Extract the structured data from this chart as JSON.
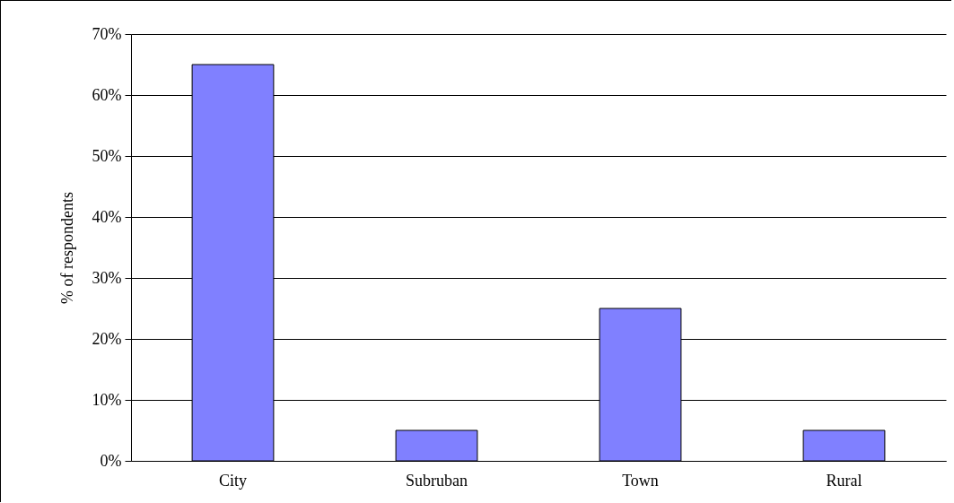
{
  "chart_data": {
    "type": "bar",
    "ylabel": "% of respondents",
    "categories": [
      "City",
      "Subruban",
      "Town",
      "Rural"
    ],
    "values": [
      65,
      5,
      25,
      5
    ],
    "color": "#8080ff",
    "ylim": [
      0,
      70
    ],
    "yticks": [
      {
        "value": 0,
        "label": "0%"
      },
      {
        "value": 10,
        "label": "10%"
      },
      {
        "value": 20,
        "label": "20%"
      },
      {
        "value": 30,
        "label": "30%"
      },
      {
        "value": 40,
        "label": "40%"
      },
      {
        "value": 50,
        "label": "50%"
      },
      {
        "value": 60,
        "label": "60%"
      },
      {
        "value": 70,
        "label": "70%"
      }
    ],
    "grid": "y"
  }
}
